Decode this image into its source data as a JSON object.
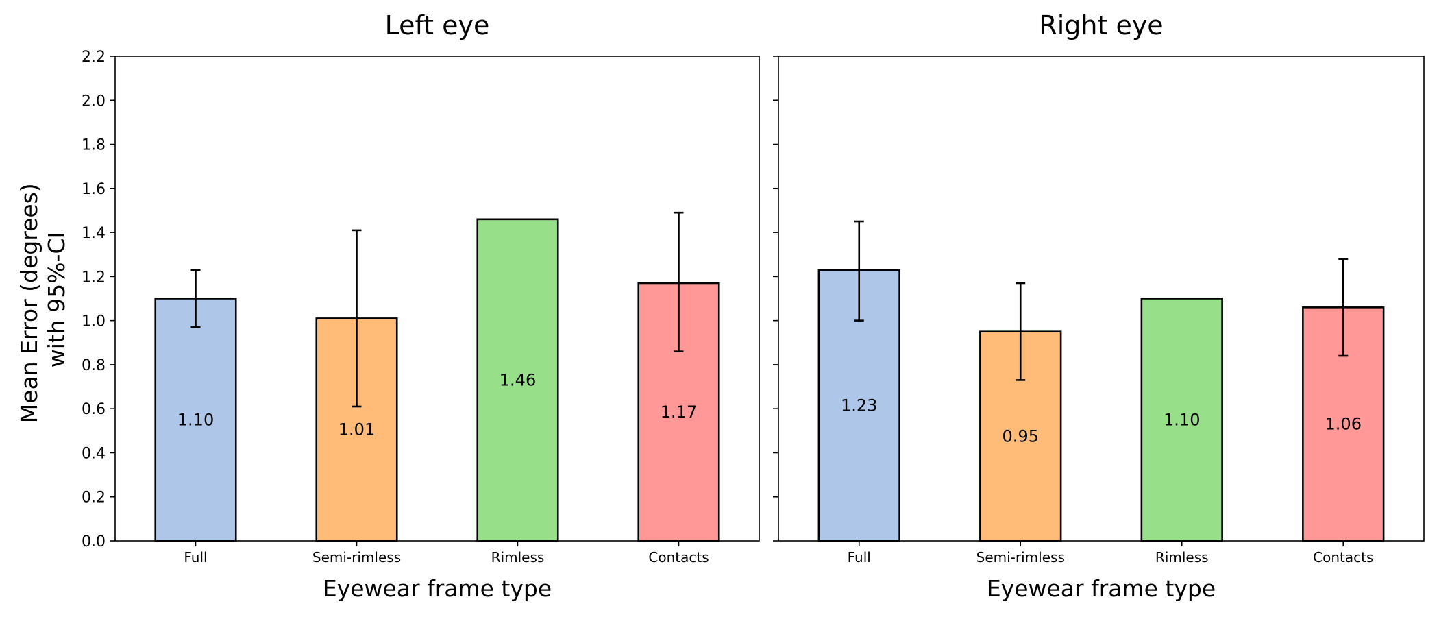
{
  "chart_data": {
    "type": "bar",
    "ylabel_line1": "Mean Error (degrees)",
    "ylabel_line2": "with 95%-CI",
    "ylim": [
      0,
      2.2
    ],
    "yticks": [
      "0.0",
      "0.2",
      "0.4",
      "0.6",
      "0.8",
      "1.0",
      "1.2",
      "1.4",
      "1.6",
      "1.8",
      "2.0",
      "2.2"
    ],
    "categories": [
      "Full",
      "Semi-rimless",
      "Rimless",
      "Contacts"
    ],
    "colors": [
      "#aec7e8",
      "#ffbb78",
      "#98df8a",
      "#ff9896"
    ],
    "legend": "none",
    "grid": false,
    "panels": [
      {
        "title": "Left eye",
        "xlabel": "Eyewear frame type",
        "values": [
          1.1,
          1.01,
          1.46,
          1.17
        ],
        "labels": [
          "1.10",
          "1.01",
          "1.46",
          "1.17"
        ],
        "ci_low": [
          0.97,
          0.61,
          null,
          0.86
        ],
        "ci_high": [
          1.23,
          1.41,
          null,
          1.49
        ]
      },
      {
        "title": "Right eye",
        "xlabel": "Eyewear frame type",
        "values": [
          1.23,
          0.95,
          1.1,
          1.06
        ],
        "labels": [
          "1.23",
          "0.95",
          "1.10",
          "1.06"
        ],
        "ci_low": [
          1.0,
          0.73,
          null,
          0.84
        ],
        "ci_high": [
          1.45,
          1.17,
          null,
          1.28
        ]
      }
    ]
  }
}
